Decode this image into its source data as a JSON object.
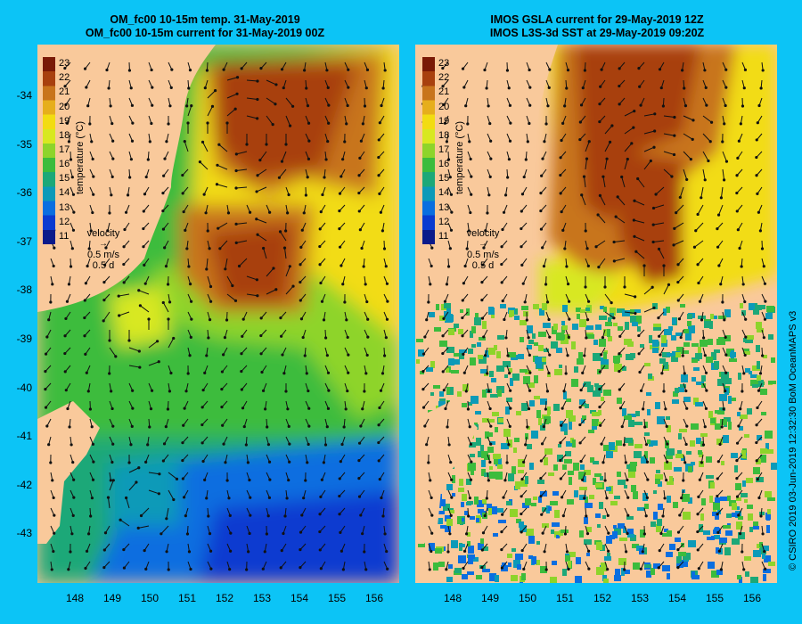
{
  "left_panel": {
    "title_line1": "OM_fc00 10-15m temp. 31-May-2019",
    "title_line2": "OM_fc00 10-15m current for 31-May-2019 00Z"
  },
  "right_panel": {
    "title_line1": "IMOS GSLA current for 29-May-2019 12Z",
    "title_line2": "IMOS L3S-3d SST at 29-May-2019 09:20Z"
  },
  "latitude_labels": [
    "-34",
    "-35",
    "-36",
    "-37",
    "-38",
    "-39",
    "-40",
    "-41",
    "-42",
    "-43"
  ],
  "longitude_labels": [
    "148",
    "149",
    "150",
    "151",
    "152",
    "153",
    "154",
    "155",
    "156"
  ],
  "colorbar": {
    "title": "temperature (°C)",
    "ticks": [
      "23",
      "22",
      "21",
      "20",
      "19",
      "18",
      "17",
      "16",
      "15",
      "14",
      "13",
      "12",
      "11"
    ],
    "colors": [
      "#7a1a06",
      "#a8400e",
      "#c8741c",
      "#e6ae1c",
      "#f2dc12",
      "#d8e820",
      "#8ed42a",
      "#3cbc3c",
      "#1ca878",
      "#0c9ab8",
      "#0a6ee0",
      "#0a3ad0",
      "#0a1a8a"
    ]
  },
  "velocity_legend": {
    "label": "velocity",
    "scale": "0.5 m/s",
    "duration": "0.5 d"
  },
  "credit": "© CSIRO 2019   03-Jun-2019 12:32:30 BoM OceanMAPS v3"
}
